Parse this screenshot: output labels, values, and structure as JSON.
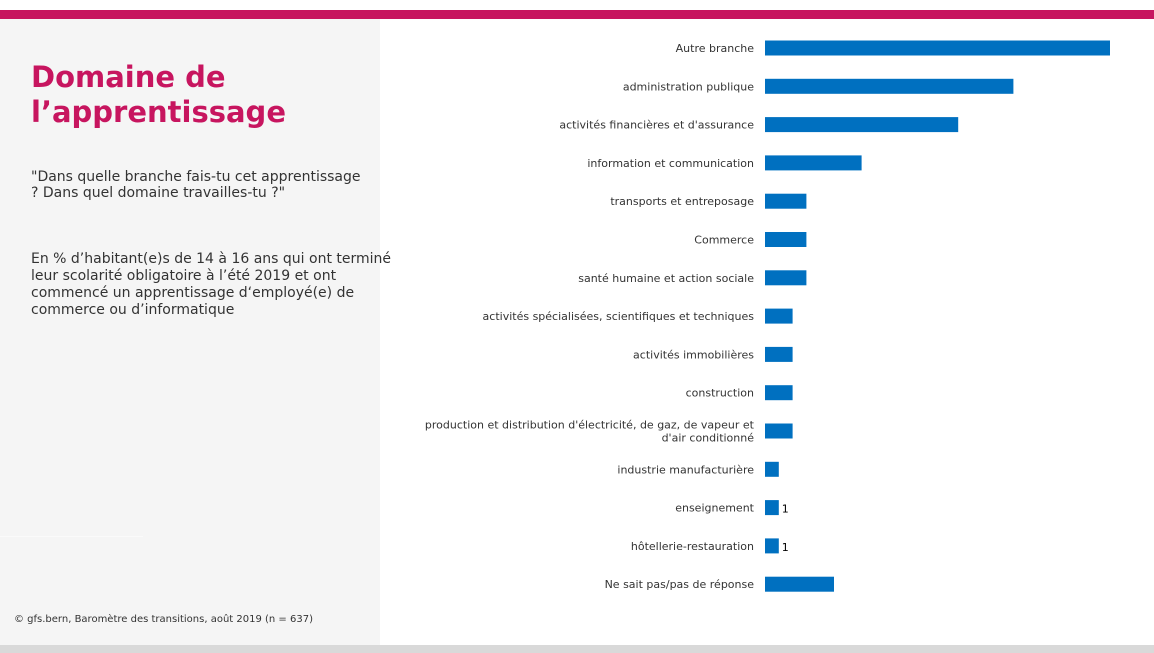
{
  "panel": {
    "title": "Domaine de l’apprentissage",
    "question": "\"Dans quelle branche fais-tu cet apprentissage ? Dans quel domaine travailles-tu ?\"",
    "population": "En % d’habitant(e)s de 14 à 16 ans qui ont terminé leur scolarité obligatoire à l’été 2019 et ont commencé un apprentissage d‘employé(e) de commerce ou d’informatique",
    "source": "© gfs.bern, Baromètre des transitions, août 2019 (n = 637)"
  },
  "colors": {
    "accent": "#c7155f",
    "bar": "#0070c0",
    "panel_bg": "#f5f5f5",
    "bottom_bar": "#d9d9d9"
  },
  "chart_data": {
    "type": "bar",
    "orientation": "horizontal",
    "categories": [
      "Autre branche",
      "administration publique",
      "activités financières et d'assurance",
      "information et communication",
      "transports et entreposage",
      "Commerce",
      "santé humaine et action sociale",
      "activités spécialisées, scientifiques et techniques",
      "activités immobilières",
      "construction",
      "production et distribution d'électricité, de gaz, de vapeur et d'air conditionné",
      "industrie manufacturière",
      "enseignement",
      "hôtellerie-restauration",
      "Ne sait pas/pas de réponse"
    ],
    "values": [
      25,
      18,
      14,
      7,
      3,
      3,
      3,
      2,
      2,
      2,
      2,
      1,
      1,
      1,
      5
    ],
    "data_labels": [
      "",
      "",
      "",
      "",
      "",
      "",
      "",
      "",
      "",
      "",
      "",
      "",
      "1",
      "1",
      ""
    ],
    "title": "",
    "xlabel": "",
    "ylabel": "",
    "grid": false,
    "legend": "none"
  }
}
